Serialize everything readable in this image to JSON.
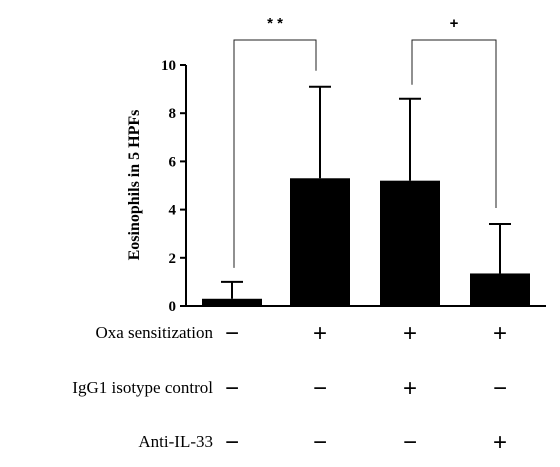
{
  "chart_data": {
    "type": "bar",
    "ylabel": "Eosinophils in 5 HPFs",
    "xlabel": "",
    "ylim": [
      0,
      10
    ],
    "yticks": [
      0,
      2,
      4,
      6,
      8,
      10
    ],
    "groups": [
      "1",
      "2",
      "3",
      "4"
    ],
    "values": [
      0.3,
      5.3,
      5.2,
      1.35
    ],
    "error_upper": [
      1.0,
      9.1,
      8.6,
      3.4
    ],
    "bar_color": "#000000",
    "grid": false,
    "conditions": [
      {
        "label": "Oxa sensitization",
        "symbols": [
          "−",
          "+",
          "+",
          "+"
        ]
      },
      {
        "label": "IgG1 isotype control",
        "symbols": [
          "−",
          "−",
          "+",
          "−"
        ]
      },
      {
        "label": "Anti-IL-33",
        "symbols": [
          "−",
          "−",
          "−",
          "+"
        ]
      }
    ],
    "significance": [
      {
        "from": 0,
        "to": 1,
        "label": "* *"
      },
      {
        "from": 2,
        "to": 3,
        "label": "+"
      }
    ]
  }
}
